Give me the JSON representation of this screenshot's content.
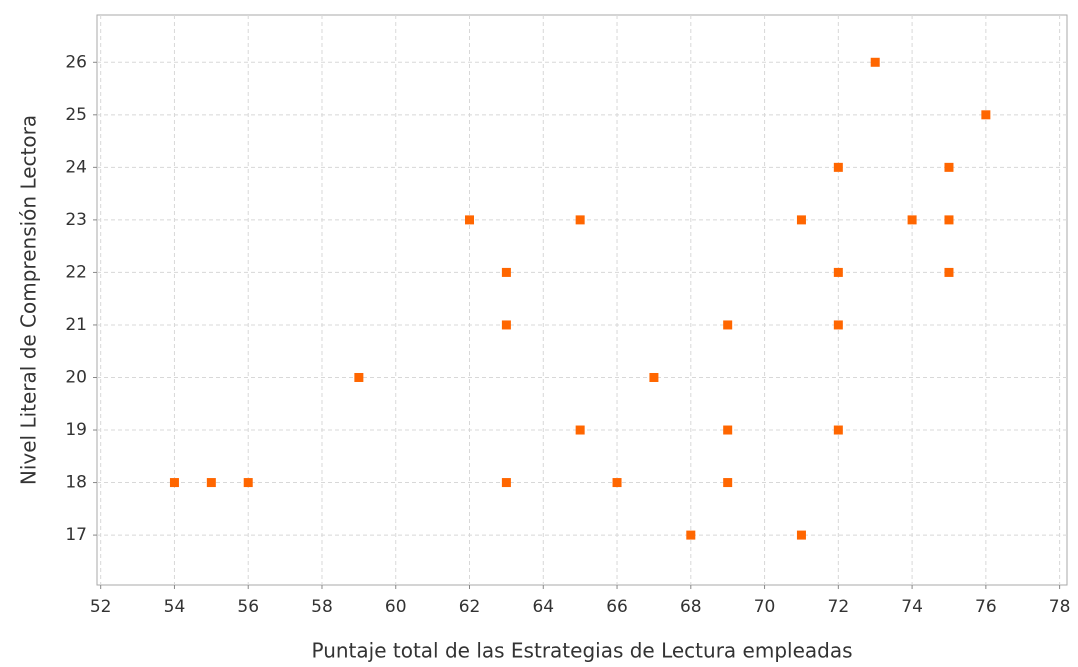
{
  "chart_data": {
    "type": "scatter",
    "x_label": "Puntaje total de las Estrategias de Lectura empleadas",
    "y_label": "Nivel Literal de Comprensión Lectora",
    "x": [
      73,
      76,
      72,
      75,
      62,
      65,
      71,
      74,
      75,
      63,
      72,
      75,
      63,
      69,
      72,
      59,
      67,
      65,
      69,
      72,
      54,
      55,
      56,
      63,
      66,
      69,
      68,
      71
    ],
    "values": [
      26,
      25,
      24,
      24,
      23,
      23,
      23,
      23,
      23,
      22,
      22,
      22,
      21,
      21,
      21,
      20,
      20,
      19,
      19,
      19,
      18,
      18,
      18,
      18,
      18,
      18,
      17,
      17
    ],
    "color": "#ff6600",
    "xlim": [
      51.9,
      78.2
    ],
    "ylim": [
      16.05,
      26.9
    ],
    "xticks": [
      52,
      54,
      56,
      58,
      60,
      62,
      64,
      66,
      68,
      70,
      72,
      74,
      76,
      78
    ],
    "yticks": [
      17,
      18,
      19,
      20,
      21,
      22,
      23,
      24,
      25,
      26
    ],
    "grid": true
  }
}
